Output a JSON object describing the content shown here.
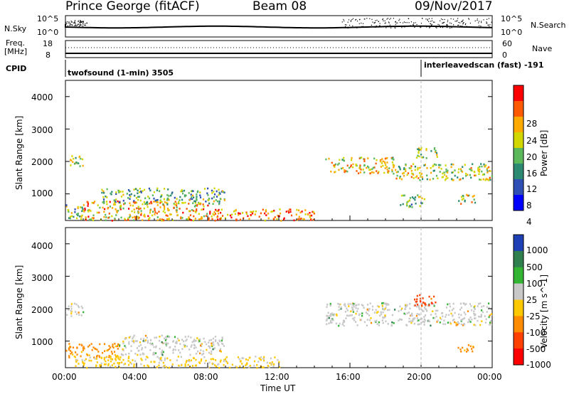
{
  "header": {
    "station": "Prince George (fitACF)",
    "beam": "Beam 08",
    "date": "09/Nov/2017"
  },
  "top_panels": {
    "nsky_label": "N.Sky",
    "nsky_ticks": [
      "10^5",
      "10^0"
    ],
    "nsearch_label": "N.Search",
    "nsearch_ticks": [
      "10^5",
      "10^0"
    ],
    "freq_label_1": "Freq.",
    "freq_label_2": "[MHz]",
    "freq_ticks": [
      "18",
      "8"
    ],
    "nave_label": "Nave",
    "nave_ticks": [
      "60",
      "0"
    ],
    "cpid_label": "CPID",
    "cpid_segments": [
      {
        "label": "twofsound (1-min) 3505",
        "start_hour": 0
      },
      {
        "label": "interleavedscan (fast) -191",
        "start_hour": 20
      }
    ]
  },
  "chart_data": [
    {
      "type": "heatmap",
      "quantity": "Power",
      "xlabel": "",
      "ylabel": "Slant Range [km]",
      "x_range_hours": [
        0,
        24
      ],
      "ylim": [
        180,
        4500
      ],
      "y_ticks": [
        "4000",
        "3000",
        "2000",
        "1000"
      ],
      "colorbar_label": "Power [dB]",
      "colorbar_ticks": [
        "28",
        "24",
        "20",
        "16",
        "12",
        "8",
        "4"
      ],
      "colorbar_colors": [
        "#ff0000",
        "#ff5a00",
        "#ffaa00",
        "#d2d700",
        "#5bb85b",
        "#2c8a73",
        "#2f4fb5",
        "#0000ff"
      ],
      "regions": [
        {
          "t0": 0.0,
          "t1": 1.0,
          "r0": 180,
          "r1": 700,
          "mean": 14
        },
        {
          "t0": 0.2,
          "t1": 1.0,
          "r0": 1800,
          "r1": 2200,
          "mean": 16
        },
        {
          "t0": 1.0,
          "t1": 8.0,
          "r0": 200,
          "r1": 800,
          "mean": 22
        },
        {
          "t0": 2.0,
          "t1": 9.0,
          "r0": 700,
          "r1": 1200,
          "mean": 13
        },
        {
          "t0": 8.0,
          "t1": 14.0,
          "r0": 200,
          "r1": 550,
          "mean": 24
        },
        {
          "t0": 14.6,
          "t1": 18.5,
          "r0": 1650,
          "r1": 2150,
          "mean": 19
        },
        {
          "t0": 18.5,
          "t1": 24.0,
          "r0": 1450,
          "r1": 1950,
          "mean": 17
        },
        {
          "t0": 19.6,
          "t1": 20.9,
          "r0": 2100,
          "r1": 2450,
          "mean": 16
        },
        {
          "t0": 18.8,
          "t1": 20.2,
          "r0": 600,
          "r1": 1000,
          "mean": 15
        },
        {
          "t0": 22.0,
          "t1": 23.0,
          "r0": 700,
          "r1": 1000,
          "mean": 18
        }
      ]
    },
    {
      "type": "heatmap",
      "quantity": "Velocity",
      "xlabel": "Time UT",
      "ylabel": "Slant Range [km]",
      "x_range_hours": [
        0,
        24
      ],
      "x_ticks": [
        "00:00",
        "04:00",
        "08:00",
        "12:00",
        "16:00",
        "20:00",
        "00:00"
      ],
      "ylim": [
        180,
        4500
      ],
      "y_ticks": [
        "4000",
        "3000",
        "2000",
        "1000"
      ],
      "colorbar_label": "Velocity [m s^-1]",
      "colorbar_ticks": [
        "1000",
        "500",
        "100",
        "25",
        "-25",
        "-100",
        "-500",
        "-1000"
      ],
      "colorbar_colors": [
        "#1f3fb5",
        "#2f7f4f",
        "#33b433",
        "#c8c8c8",
        "#ffc800",
        "#ff8c00",
        "#ff4000",
        "#ff0000"
      ],
      "regions": [
        {
          "t0": 0.0,
          "t1": 1.0,
          "r0": 1800,
          "r1": 2200,
          "mean": 0
        },
        {
          "t0": 0.0,
          "t1": 3.0,
          "r0": 500,
          "r1": 950,
          "mean": -150
        },
        {
          "t0": 0.5,
          "t1": 12.0,
          "r0": 200,
          "r1": 550,
          "mean": -30
        },
        {
          "t0": 3.0,
          "t1": 9.0,
          "r0": 600,
          "r1": 1200,
          "mean": 0
        },
        {
          "t0": 14.6,
          "t1": 24.0,
          "r0": 1500,
          "r1": 2200,
          "mean": 0
        },
        {
          "t0": 19.6,
          "t1": 20.9,
          "r0": 2100,
          "r1": 2450,
          "mean": -700
        },
        {
          "t0": 22.0,
          "t1": 23.0,
          "r0": 700,
          "r1": 950,
          "mean": -150
        }
      ]
    }
  ]
}
